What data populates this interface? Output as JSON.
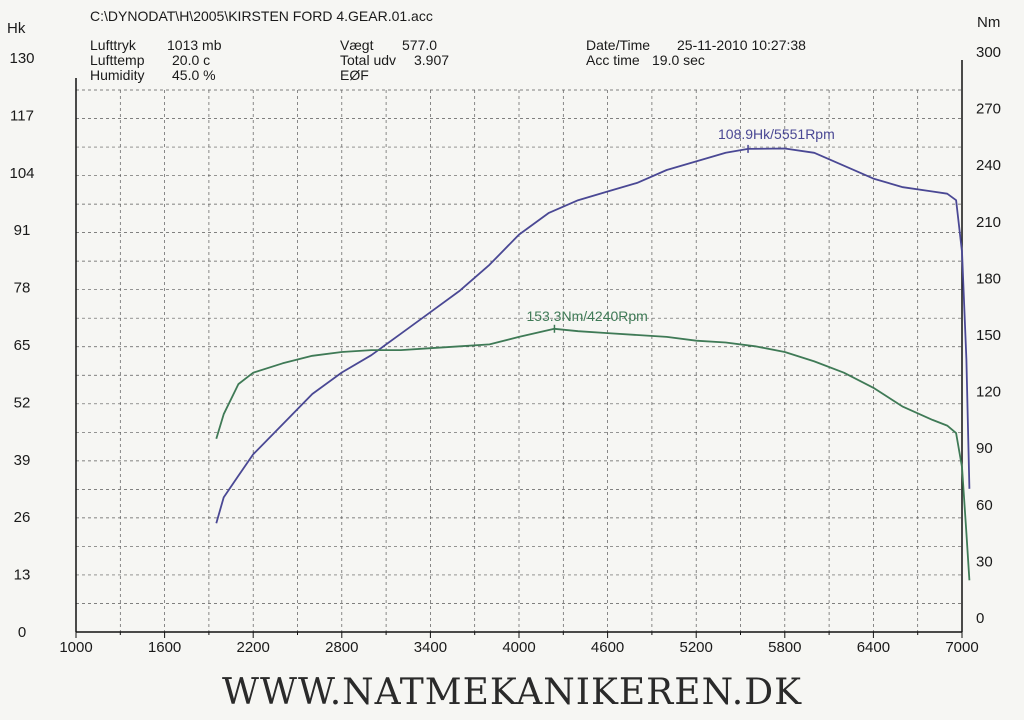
{
  "header": {
    "file": "C:\\DYNODAT\\H\\2005\\KIRSTEN FORD 4.GEAR.01.acc",
    "lufttryk_label": "Lufttryk",
    "lufttryk_value": "1013 mb",
    "lufttemp_label": "Lufttemp",
    "lufttemp_value": "20.0 c",
    "humidity_label": "Humidity",
    "humidity_value": "45.0 %",
    "vaegt_label": "Vægt",
    "vaegt_value": "577.0",
    "total_label": "Total udv",
    "total_value": "3.907",
    "fuel": "EØF",
    "date_label": "Date/Time",
    "date_value": "25-11-2010 10:27:38",
    "acc_label": "Acc time",
    "acc_value": "19.0 sec"
  },
  "footer": {
    "text": "WWW.NATMEKANIKEREN.DK"
  },
  "colors": {
    "power": "#4a4894",
    "torque": "#3f7a56",
    "grid": "#5a5a5a",
    "axis": "#111111"
  },
  "chart_data": {
    "type": "line",
    "x_ticks": [
      "1000",
      "1600",
      "2200",
      "2800",
      "3400",
      "4000",
      "4600",
      "5200",
      "5800",
      "6400",
      "7000"
    ],
    "x_range": [
      1000,
      7000
    ],
    "y_left_unit": "Hk",
    "y_left_ticks": [
      "0",
      "13",
      "26",
      "39",
      "52",
      "65",
      "78",
      "91",
      "104",
      "117",
      "130"
    ],
    "y_left_range": [
      0,
      130
    ],
    "y_right_unit": "Nm",
    "y_right_ticks": [
      "0",
      "30",
      "60",
      "90",
      "120",
      "150",
      "180",
      "210",
      "240",
      "270",
      "300"
    ],
    "y_right_range": [
      0,
      300
    ],
    "grid": true,
    "series": [
      {
        "name": "Hk",
        "axis": "left",
        "peak_label": "108.9Hk/5551Rpm",
        "peak": [
          5551,
          108.9
        ],
        "points": [
          [
            1950,
            22
          ],
          [
            2000,
            28
          ],
          [
            2100,
            33
          ],
          [
            2200,
            38
          ],
          [
            2400,
            45
          ],
          [
            2600,
            52
          ],
          [
            2800,
            57
          ],
          [
            3000,
            61
          ],
          [
            3200,
            66
          ],
          [
            3400,
            71
          ],
          [
            3600,
            76
          ],
          [
            3800,
            82
          ],
          [
            4000,
            89
          ],
          [
            4200,
            94
          ],
          [
            4400,
            97
          ],
          [
            4600,
            99
          ],
          [
            4800,
            101
          ],
          [
            5000,
            104
          ],
          [
            5200,
            106
          ],
          [
            5400,
            108
          ],
          [
            5551,
            108.9
          ],
          [
            5800,
            109
          ],
          [
            6000,
            108
          ],
          [
            6200,
            105
          ],
          [
            6400,
            102
          ],
          [
            6600,
            100
          ],
          [
            6800,
            99
          ],
          [
            6900,
            98.5
          ],
          [
            6960,
            97
          ],
          [
            7000,
            85
          ],
          [
            7030,
            60
          ],
          [
            7050,
            30
          ]
        ]
      },
      {
        "name": "Nm",
        "axis": "right",
        "peak_label": "153.3Nm/4240Rpm",
        "peak": [
          4240,
          153.3
        ],
        "points": [
          [
            1950,
            95
          ],
          [
            2000,
            108
          ],
          [
            2100,
            124
          ],
          [
            2200,
            130
          ],
          [
            2400,
            135
          ],
          [
            2600,
            139
          ],
          [
            2800,
            141
          ],
          [
            3000,
            142
          ],
          [
            3200,
            142
          ],
          [
            3400,
            143
          ],
          [
            3600,
            144
          ],
          [
            3800,
            145
          ],
          [
            4000,
            149
          ],
          [
            4240,
            153.3
          ],
          [
            4400,
            152
          ],
          [
            4600,
            151
          ],
          [
            4800,
            150
          ],
          [
            5000,
            149
          ],
          [
            5200,
            147
          ],
          [
            5400,
            146
          ],
          [
            5600,
            144
          ],
          [
            5800,
            141
          ],
          [
            6000,
            136
          ],
          [
            6200,
            130
          ],
          [
            6400,
            122
          ],
          [
            6600,
            112
          ],
          [
            6800,
            105
          ],
          [
            6900,
            102
          ],
          [
            6960,
            98
          ],
          [
            7000,
            80
          ],
          [
            7030,
            45
          ],
          [
            7050,
            20
          ]
        ]
      }
    ]
  }
}
